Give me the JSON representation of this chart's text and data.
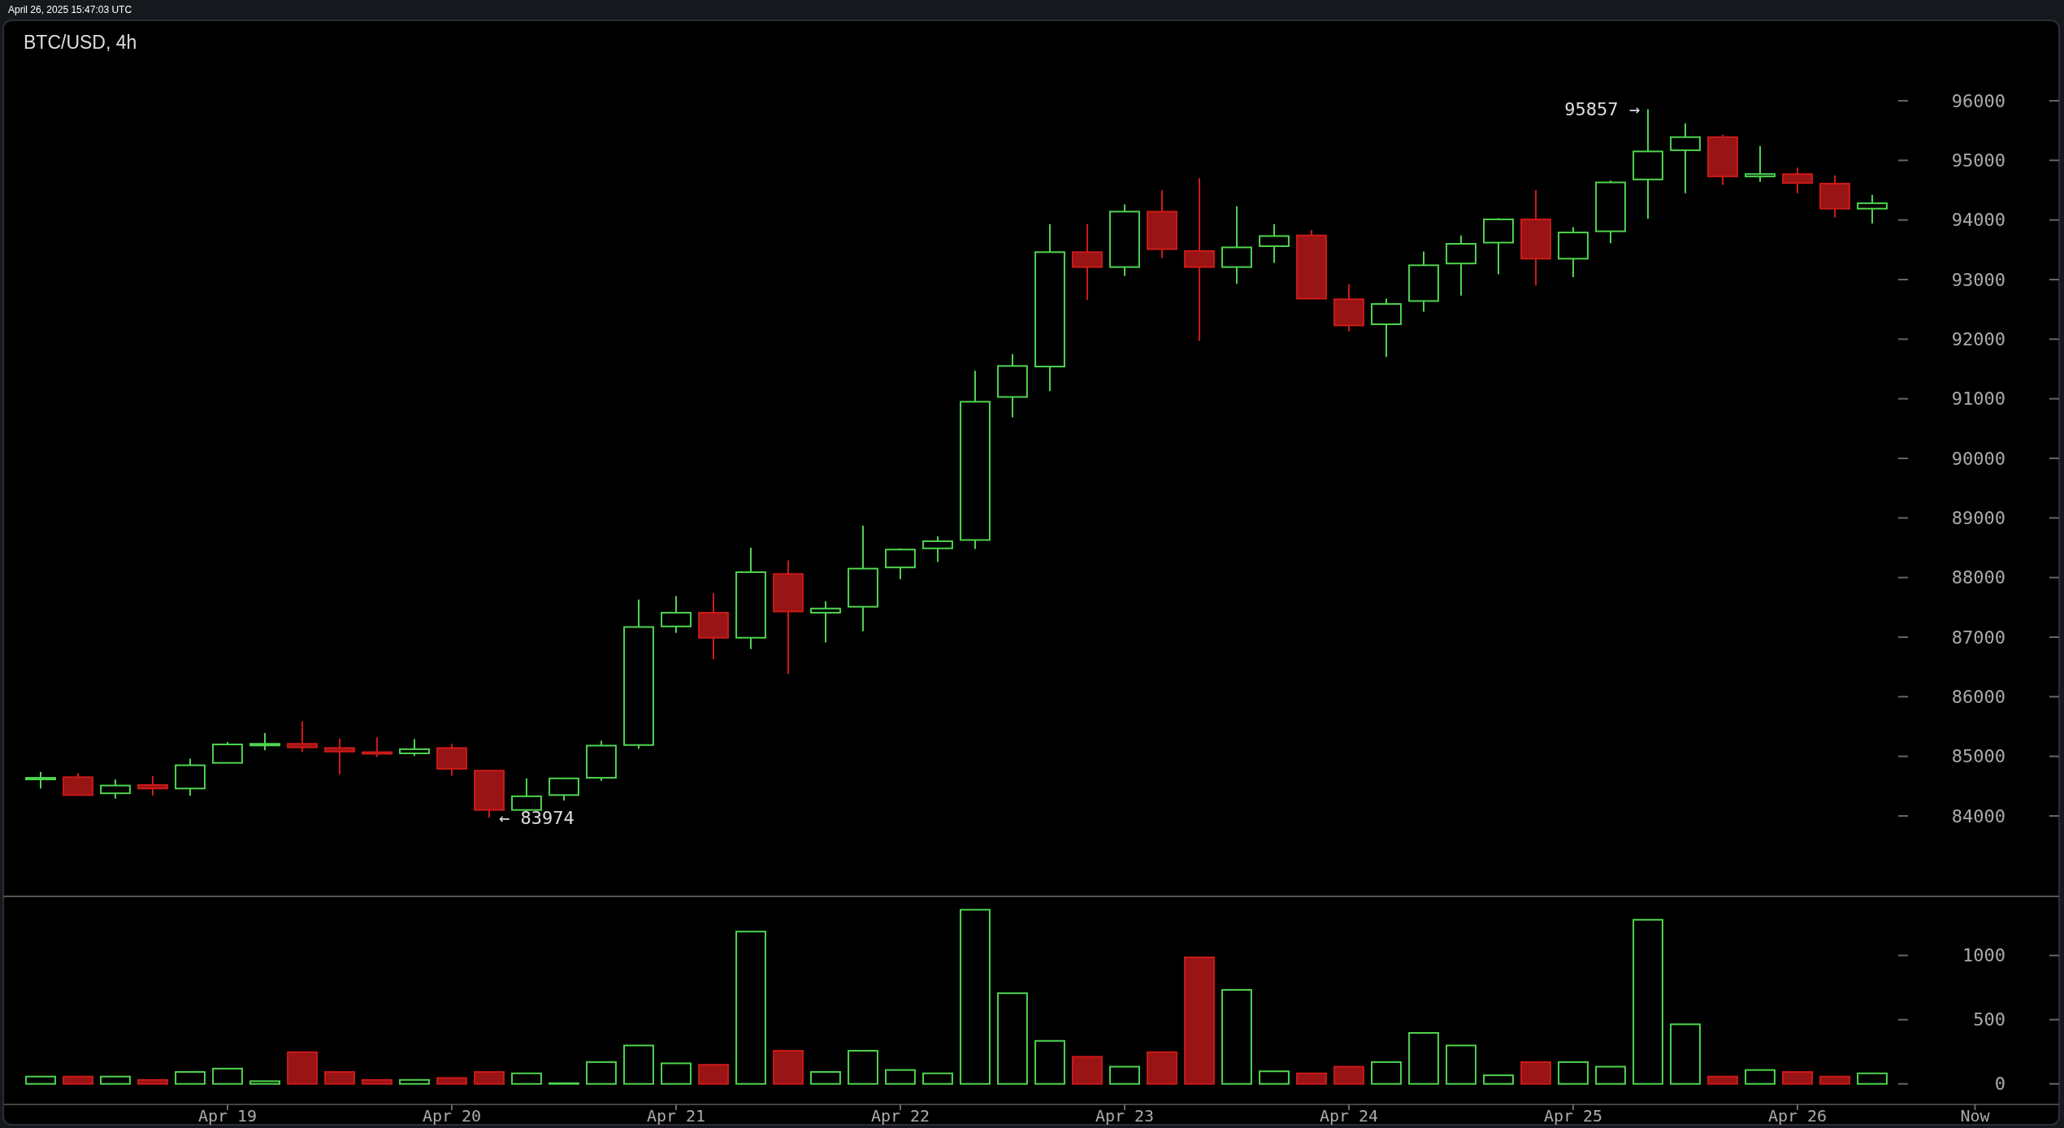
{
  "chart_data": [
    {
      "type": "candlestick",
      "title": "BTC/USD, 4h",
      "annotations": [
        "April 26, 2025 15:47:03 UTC",
        {
          "text": "95857 →",
          "x": "2025-04-25T08:00",
          "y": 95857
        },
        {
          "text": "← 83974",
          "x": "2025-04-20T04:00",
          "y": 83974
        }
      ],
      "x": [
        "2025-04-18T04:00",
        "2025-04-18T08:00",
        "2025-04-18T12:00",
        "2025-04-18T16:00",
        "2025-04-18T20:00",
        "2025-04-19T00:00",
        "2025-04-19T04:00",
        "2025-04-19T08:00",
        "2025-04-19T12:00",
        "2025-04-19T16:00",
        "2025-04-19T20:00",
        "2025-04-20T00:00",
        "2025-04-20T04:00",
        "2025-04-20T08:00",
        "2025-04-20T12:00",
        "2025-04-20T16:00",
        "2025-04-20T20:00",
        "2025-04-21T00:00",
        "2025-04-21T04:00",
        "2025-04-21T08:00",
        "2025-04-21T12:00",
        "2025-04-21T16:00",
        "2025-04-21T20:00",
        "2025-04-22T00:00",
        "2025-04-22T04:00",
        "2025-04-22T08:00",
        "2025-04-22T12:00",
        "2025-04-22T16:00",
        "2025-04-22T20:00",
        "2025-04-23T00:00",
        "2025-04-23T04:00",
        "2025-04-23T08:00",
        "2025-04-23T12:00",
        "2025-04-23T16:00",
        "2025-04-23T20:00",
        "2025-04-24T00:00",
        "2025-04-24T04:00",
        "2025-04-24T08:00",
        "2025-04-24T12:00",
        "2025-04-24T16:00",
        "2025-04-24T20:00",
        "2025-04-25T00:00",
        "2025-04-25T04:00",
        "2025-04-25T08:00",
        "2025-04-25T12:00",
        "2025-04-25T16:00",
        "2025-04-25T20:00",
        "2025-04-26T00:00",
        "2025-04-26T04:00",
        "2025-04-26T08:00"
      ],
      "ohlc": [
        [
          84630,
          84740,
          84460,
          84640
        ],
        [
          84650,
          84720,
          84350,
          84350
        ],
        [
          84380,
          84610,
          84290,
          84510
        ],
        [
          84520,
          84670,
          84340,
          84460
        ],
        [
          84460,
          84960,
          84340,
          84850
        ],
        [
          84890,
          85240,
          84890,
          85200
        ],
        [
          85190,
          85390,
          85100,
          85210
        ],
        [
          85210,
          85590,
          85070,
          85150
        ],
        [
          85140,
          85300,
          84700,
          85080
        ],
        [
          85070,
          85320,
          84990,
          85050
        ],
        [
          85050,
          85290,
          85010,
          85120
        ],
        [
          85140,
          85210,
          84670,
          84790
        ],
        [
          84760,
          84770,
          83974,
          84100
        ],
        [
          84100,
          84630,
          84090,
          84330
        ],
        [
          84350,
          84640,
          84260,
          84630
        ],
        [
          84640,
          85260,
          84590,
          85180
        ],
        [
          85190,
          87630,
          85130,
          87170
        ],
        [
          87180,
          87690,
          87070,
          87410
        ],
        [
          87410,
          87740,
          86630,
          86990
        ],
        [
          86990,
          88500,
          86800,
          88090
        ],
        [
          88060,
          88290,
          86380,
          87430
        ],
        [
          87410,
          87600,
          86910,
          87480
        ],
        [
          87510,
          88870,
          87100,
          88150
        ],
        [
          88170,
          88490,
          87970,
          88470
        ],
        [
          88490,
          88690,
          88260,
          88610
        ],
        [
          88630,
          91470,
          88480,
          90950
        ],
        [
          91030,
          91750,
          90690,
          91550
        ],
        [
          91540,
          93930,
          91130,
          93460
        ],
        [
          93460,
          93930,
          92660,
          93210
        ],
        [
          93210,
          94260,
          93060,
          94140
        ],
        [
          94140,
          94500,
          93360,
          93510
        ],
        [
          93480,
          94700,
          91970,
          93210
        ],
        [
          93210,
          94230,
          92930,
          93540
        ],
        [
          93560,
          93930,
          93280,
          93730
        ],
        [
          93740,
          93830,
          92680,
          92680
        ],
        [
          92670,
          92920,
          92130,
          92230
        ],
        [
          92250,
          92680,
          91700,
          92590
        ],
        [
          92640,
          93470,
          92460,
          93240
        ],
        [
          93270,
          93740,
          92730,
          93600
        ],
        [
          93620,
          94030,
          93090,
          94010
        ],
        [
          94010,
          94500,
          92900,
          93350
        ],
        [
          93350,
          93880,
          93040,
          93790
        ],
        [
          93810,
          94660,
          93610,
          94630
        ],
        [
          94680,
          95857,
          94020,
          95150
        ],
        [
          95170,
          95620,
          94450,
          95390
        ],
        [
          95390,
          95430,
          94590,
          94730
        ],
        [
          94730,
          95240,
          94640,
          94770
        ],
        [
          94770,
          94880,
          94450,
          94620
        ],
        [
          94610,
          94750,
          94040,
          94190
        ],
        [
          94190,
          94420,
          93940,
          94280
        ]
      ],
      "colors": [
        "#4ed44e",
        "#cc1a1a",
        "#4ed44e",
        "#cc1a1a",
        "#4ed44e",
        "#4ed44e",
        "#4ed44e",
        "#cc1a1a",
        "#cc1a1a",
        "#cc1a1a",
        "#4ed44e",
        "#cc1a1a",
        "#cc1a1a",
        "#4ed44e",
        "#4ed44e",
        "#4ed44e",
        "#4ed44e",
        "#4ed44e",
        "#cc1a1a",
        "#4ed44e",
        "#cc1a1a",
        "#4ed44e",
        "#4ed44e",
        "#4ed44e",
        "#4ed44e",
        "#4ed44e",
        "#4ed44e",
        "#4ed44e",
        "#cc1a1a",
        "#4ed44e",
        "#cc1a1a",
        "#cc1a1a",
        "#4ed44e",
        "#4ed44e",
        "#cc1a1a",
        "#cc1a1a",
        "#4ed44e",
        "#4ed44e",
        "#4ed44e",
        "#4ed44e",
        "#cc1a1a",
        "#4ed44e",
        "#4ed44e",
        "#4ed44e",
        "#4ed44e",
        "#cc1a1a",
        "#4ed44e",
        "#cc1a1a",
        "#cc1a1a",
        "#4ed44e"
      ],
      "xlim": [
        "2025-04-18T00:00",
        "2025-04-27T04:00"
      ],
      "ylim": [
        82650,
        97350
      ],
      "yticks": [
        84000,
        85000,
        86000,
        87000,
        88000,
        89000,
        90000,
        91000,
        92000,
        93000,
        94000,
        95000,
        96000
      ],
      "tick_labels": "y",
      "grid": false
    },
    {
      "type": "bar",
      "x": [
        "2025-04-18T04:00",
        "2025-04-18T08:00",
        "2025-04-18T12:00",
        "2025-04-18T16:00",
        "2025-04-18T20:00",
        "2025-04-19T00:00",
        "2025-04-19T04:00",
        "2025-04-19T08:00",
        "2025-04-19T12:00",
        "2025-04-19T16:00",
        "2025-04-19T20:00",
        "2025-04-20T00:00",
        "2025-04-20T04:00",
        "2025-04-20T08:00",
        "2025-04-20T12:00",
        "2025-04-20T16:00",
        "2025-04-20T20:00",
        "2025-04-21T00:00",
        "2025-04-21T04:00",
        "2025-04-21T08:00",
        "2025-04-21T12:00",
        "2025-04-21T16:00",
        "2025-04-21T20:00",
        "2025-04-22T00:00",
        "2025-04-22T04:00",
        "2025-04-22T08:00",
        "2025-04-22T12:00",
        "2025-04-22T16:00",
        "2025-04-22T20:00",
        "2025-04-23T00:00",
        "2025-04-23T04:00",
        "2025-04-23T08:00",
        "2025-04-23T12:00",
        "2025-04-23T16:00",
        "2025-04-23T20:00",
        "2025-04-24T00:00",
        "2025-04-24T04:00",
        "2025-04-24T08:00",
        "2025-04-24T12:00",
        "2025-04-24T16:00",
        "2025-04-24T20:00",
        "2025-04-25T00:00",
        "2025-04-25T04:00",
        "2025-04-25T08:00",
        "2025-04-25T12:00",
        "2025-04-25T16:00",
        "2025-04-25T20:00",
        "2025-04-26T00:00",
        "2025-04-26T04:00",
        "2025-04-26T08:00"
      ],
      "values": [
        57,
        57,
        57,
        31,
        93,
        119,
        21,
        247,
        93,
        31,
        31,
        46,
        93,
        82,
        5,
        170,
        299,
        160,
        149,
        1186,
        258,
        93,
        258,
        108,
        82,
        1356,
        706,
        335,
        211,
        134,
        247,
        985,
        732,
        98,
        82,
        134,
        170,
        397,
        299,
        67,
        170,
        170,
        134,
        1278,
        464,
        57,
        108,
        93,
        57,
        82
      ],
      "colors": [
        "#4ed44e",
        "#cc1a1a",
        "#4ed44e",
        "#cc1a1a",
        "#4ed44e",
        "#4ed44e",
        "#4ed44e",
        "#cc1a1a",
        "#cc1a1a",
        "#cc1a1a",
        "#4ed44e",
        "#cc1a1a",
        "#cc1a1a",
        "#4ed44e",
        "#4ed44e",
        "#4ed44e",
        "#4ed44e",
        "#4ed44e",
        "#cc1a1a",
        "#4ed44e",
        "#cc1a1a",
        "#4ed44e",
        "#4ed44e",
        "#4ed44e",
        "#4ed44e",
        "#4ed44e",
        "#4ed44e",
        "#4ed44e",
        "#cc1a1a",
        "#4ed44e",
        "#cc1a1a",
        "#cc1a1a",
        "#4ed44e",
        "#4ed44e",
        "#cc1a1a",
        "#cc1a1a",
        "#4ed44e",
        "#4ed44e",
        "#4ed44e",
        "#4ed44e",
        "#cc1a1a",
        "#4ed44e",
        "#4ed44e",
        "#4ed44e",
        "#4ed44e",
        "#cc1a1a",
        "#4ed44e",
        "#cc1a1a",
        "#cc1a1a",
        "#4ed44e"
      ],
      "xlim": [
        "2025-04-18T00:00",
        "2025-04-27T04:00"
      ],
      "xticks": [
        {
          "value": "2025-04-19",
          "label": "Apr 19"
        },
        {
          "value": "2025-04-20",
          "label": "Apr 20"
        },
        {
          "value": "2025-04-21",
          "label": "Apr 21"
        },
        {
          "value": "2025-04-22",
          "label": "Apr 22"
        },
        {
          "value": "2025-04-23",
          "label": "Apr 23"
        },
        {
          "value": "2025-04-24",
          "label": "Apr 24"
        },
        {
          "value": "2025-04-25",
          "label": "Apr 25"
        },
        {
          "value": "2025-04-26",
          "label": "Apr 26"
        },
        {
          "value": "2025-04-26T19:00",
          "label": "Now"
        }
      ],
      "ylim": [
        -160,
        1460
      ],
      "yticks": [
        0,
        500,
        1000
      ],
      "grid": false
    }
  ]
}
